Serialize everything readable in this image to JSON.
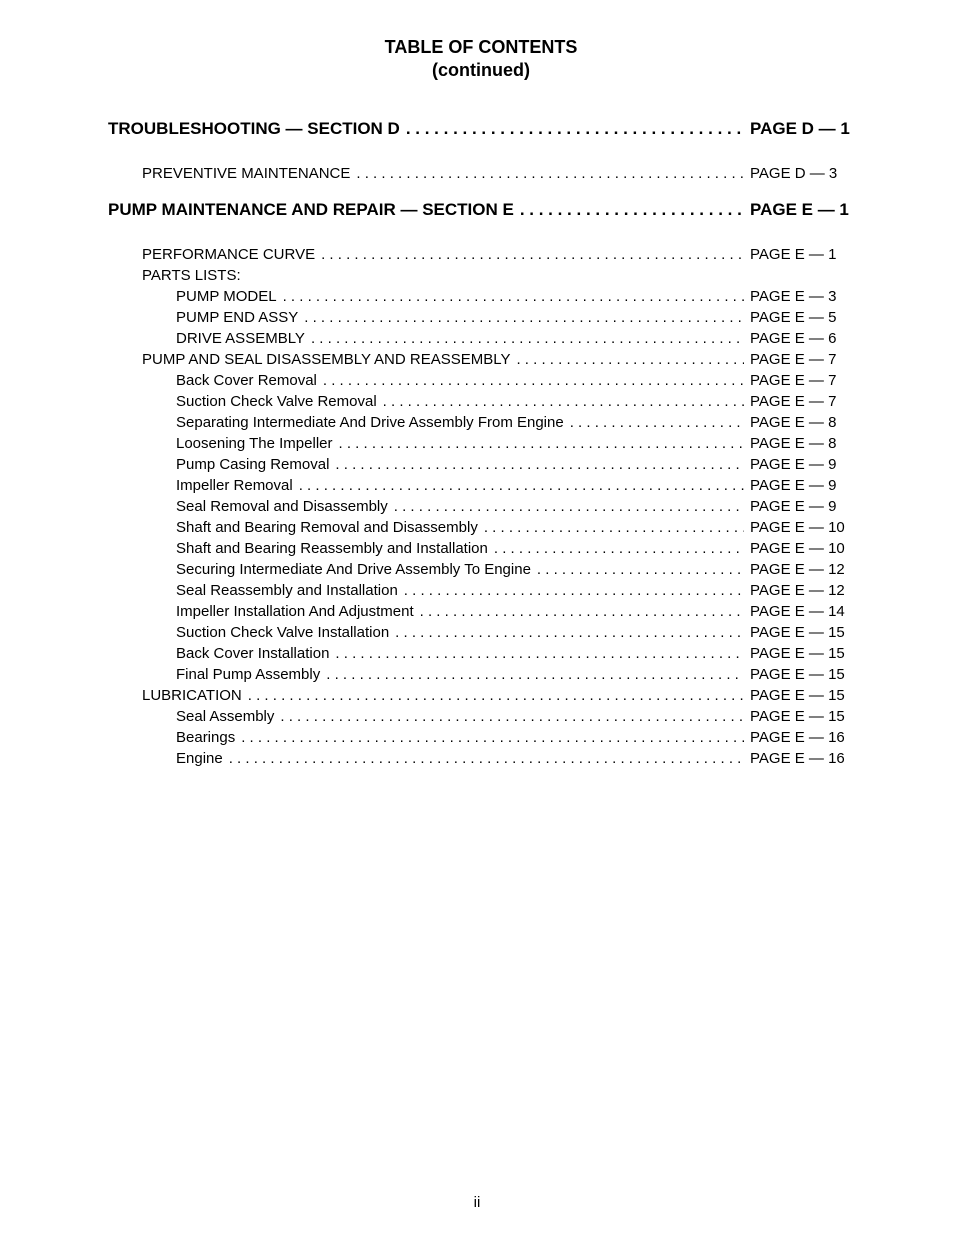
{
  "title": {
    "line1": "TABLE OF CONTENTS",
    "line2": "(continued)"
  },
  "footer_page": "ii",
  "entries": [
    {
      "kind": "section",
      "label": "TROUBLESHOOTING — SECTION D",
      "page": "PAGE D — 1"
    },
    {
      "kind": "gap"
    },
    {
      "kind": "l1",
      "label": "PREVENTIVE MAINTENANCE",
      "page": "PAGE D — 3"
    },
    {
      "kind": "gap"
    },
    {
      "kind": "section",
      "label": "PUMP MAINTENANCE AND REPAIR — SECTION E",
      "page": "PAGE E — 1"
    },
    {
      "kind": "gap"
    },
    {
      "kind": "l1",
      "label": "PERFORMANCE CURVE",
      "page": "PAGE E — 1"
    },
    {
      "kind": "plain",
      "label": "PARTS LISTS:"
    },
    {
      "kind": "l2",
      "label": "PUMP MODEL",
      "page": "PAGE E — 3"
    },
    {
      "kind": "l2",
      "label": "PUMP END ASSY",
      "page": "PAGE E — 5"
    },
    {
      "kind": "l2",
      "label": "DRIVE ASSEMBLY",
      "page": "PAGE E — 6"
    },
    {
      "kind": "l1",
      "label": "PUMP AND SEAL DISASSEMBLY AND REASSEMBLY",
      "page": "PAGE E — 7"
    },
    {
      "kind": "l2",
      "label": "Back Cover Removal",
      "page": "PAGE E — 7"
    },
    {
      "kind": "l2",
      "label": "Suction Check Valve Removal",
      "page": "PAGE E — 7"
    },
    {
      "kind": "l2",
      "label": "Separating Intermediate And Drive Assembly From Engine",
      "page": "PAGE E — 8"
    },
    {
      "kind": "l2",
      "label": "Loosening The Impeller",
      "page": "PAGE E — 8"
    },
    {
      "kind": "l2",
      "label": "Pump Casing Removal",
      "page": "PAGE E — 9"
    },
    {
      "kind": "l2",
      "label": "Impeller Removal",
      "page": "PAGE E — 9"
    },
    {
      "kind": "l2",
      "label": "Seal Removal and Disassembly",
      "page": "PAGE E — 9"
    },
    {
      "kind": "l2",
      "label": "Shaft and Bearing Removal and Disassembly",
      "page": "PAGE E — 10"
    },
    {
      "kind": "l2",
      "label": "Shaft and Bearing Reassembly and Installation",
      "page": "PAGE E — 10"
    },
    {
      "kind": "l2",
      "label": "Securing Intermediate And Drive Assembly To Engine",
      "page": "PAGE E — 12"
    },
    {
      "kind": "l2",
      "label": "Seal Reassembly and Installation",
      "page": "PAGE E — 12"
    },
    {
      "kind": "l2",
      "label": "Impeller Installation And Adjustment",
      "page": "PAGE E — 14"
    },
    {
      "kind": "l2",
      "label": "Suction Check Valve Installation",
      "page": "PAGE E — 15"
    },
    {
      "kind": "l2",
      "label": "Back Cover Installation",
      "page": "PAGE E — 15"
    },
    {
      "kind": "l2",
      "label": "Final Pump Assembly",
      "page": "PAGE E — 15"
    },
    {
      "kind": "l1",
      "label": "LUBRICATION",
      "page": "PAGE E — 15"
    },
    {
      "kind": "l2",
      "label": "Seal Assembly",
      "page": "PAGE E — 15"
    },
    {
      "kind": "l2",
      "label": "Bearings",
      "page": "PAGE E — 16"
    },
    {
      "kind": "l2",
      "label": "Engine",
      "page": "PAGE E — 16"
    }
  ]
}
